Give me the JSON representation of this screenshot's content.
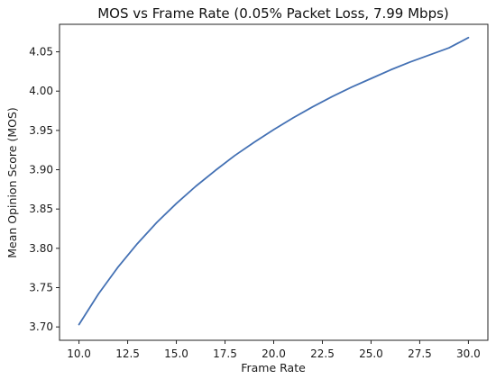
{
  "chart_data": {
    "type": "line",
    "title": "MOS vs Frame Rate (0.05% Packet Loss, 7.99 Mbps)",
    "xlabel": "Frame Rate",
    "ylabel": "Mean Opinion Score (MOS)",
    "xlim": [
      9.0,
      31.0
    ],
    "ylim": [
      3.683,
      4.085
    ],
    "xticks": [
      10.0,
      12.5,
      15.0,
      17.5,
      20.0,
      22.5,
      25.0,
      27.5,
      30.0
    ],
    "xtick_labels": [
      "10.0",
      "12.5",
      "15.0",
      "17.5",
      "20.0",
      "22.5",
      "25.0",
      "27.5",
      "30.0"
    ],
    "yticks": [
      3.7,
      3.75,
      3.8,
      3.85,
      3.9,
      3.95,
      4.0,
      4.05
    ],
    "ytick_labels": [
      "3.70",
      "3.75",
      "3.80",
      "3.85",
      "3.90",
      "3.95",
      "4.00",
      "4.05"
    ],
    "grid": false,
    "series": [
      {
        "color": "#4471b4",
        "x": [
          10,
          11,
          12,
          13,
          14,
          15,
          16,
          17,
          18,
          19,
          20,
          21,
          22,
          23,
          24,
          25,
          26,
          27,
          28,
          29,
          30
        ],
        "y": [
          3.703,
          3.742,
          3.776,
          3.806,
          3.833,
          3.857,
          3.879,
          3.899,
          3.918,
          3.935,
          3.951,
          3.966,
          3.98,
          3.993,
          4.005,
          4.016,
          4.027,
          4.037,
          4.046,
          4.055,
          4.068
        ]
      }
    ]
  }
}
